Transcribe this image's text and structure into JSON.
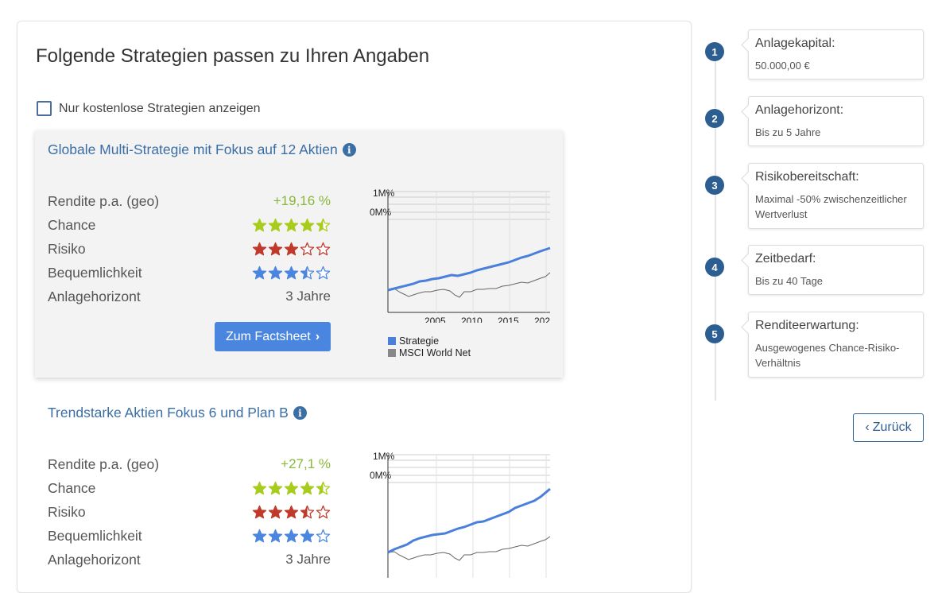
{
  "page": {
    "title": "Folgende Strategien passen zu Ihren Angaben",
    "filter_label": "Nur kostenlose Strategien anzeigen"
  },
  "colors": {
    "link_blue": "#3a6ea5",
    "green": "#8ab83a",
    "chance_star": "#a8cc1c",
    "risk_star": "#c0392b",
    "comfort_star": "#4a86e0",
    "button_blue": "#4a86e0",
    "step_blue": "#2d5e92"
  },
  "strategies": [
    {
      "title": "Globale Multi-Strategie mit Fokus auf 12 Aktien",
      "metrics": {
        "rendite_label": "Rendite p.a. (geo)",
        "rendite_value": "+19,16 %",
        "chance_label": "Chance",
        "chance_stars": 4.5,
        "risiko_label": "Risiko",
        "risiko_stars": 3,
        "bequemlichkeit_label": "Bequemlichkeit",
        "bequemlichkeit_stars": 3.5,
        "horizont_label": "Anlagehorizont",
        "horizont_value": "3 Jahre"
      },
      "factsheet_label": "Zum Factsheet",
      "chart_labels": {
        "y_top": "1M%",
        "y_zero": "0M%",
        "x_ticks": [
          "2005",
          "2010",
          "2015",
          "202"
        ]
      },
      "legend": [
        "Strategie",
        "MSCI World Net"
      ]
    },
    {
      "title": "Trendstarke Aktien Fokus 6 und Plan B",
      "metrics": {
        "rendite_label": "Rendite p.a. (geo)",
        "rendite_value": "+27,1 %",
        "chance_label": "Chance",
        "chance_stars": 4.5,
        "risiko_label": "Risiko",
        "risiko_stars": 3.5,
        "bequemlichkeit_label": "Bequemlichkeit",
        "bequemlichkeit_stars": 4,
        "horizont_label": "Anlagehorizont",
        "horizont_value": "3 Jahre"
      },
      "chart_labels": {
        "y_top": "1M%",
        "y_zero": "0M%"
      }
    }
  ],
  "steps": [
    {
      "number": "1",
      "label": "Anlagekapital:",
      "value": "50.000,00 €"
    },
    {
      "number": "2",
      "label": "Anlagehorizont:",
      "value": "Bis zu 5 Jahre"
    },
    {
      "number": "3",
      "label": "Risikobereitschaft:",
      "value": "Maximal -50% zwischenzeitlicher Wertverlust"
    },
    {
      "number": "4",
      "label": "Zeitbedarf:",
      "value": "Bis zu 40 Tage"
    },
    {
      "number": "5",
      "label": "Renditeerwartung:",
      "value": "Ausgewogenes Chance-Risiko-Verhältnis"
    }
  ],
  "back_button": {
    "label": "Zurück"
  }
}
